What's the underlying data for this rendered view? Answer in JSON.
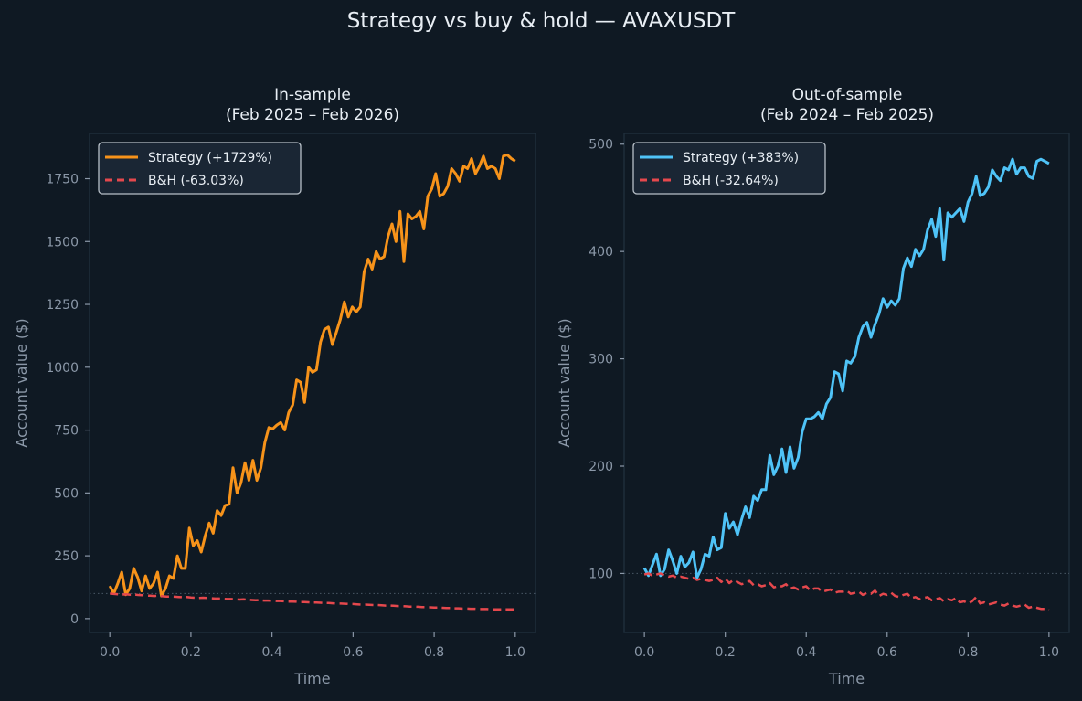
{
  "title": "Strategy vs buy & hold — AVAXUSDT",
  "colors": {
    "background": "#0f1923",
    "strategy_in": "#f7931a",
    "strategy_out": "#4fc3f7",
    "bh": "#e5484d",
    "text": "#e8eef4",
    "muted": "#8b98a8"
  },
  "chart_data": [
    {
      "type": "line",
      "title_line1": "In-sample",
      "title_line2": "(Feb 2025 – Feb 2026)",
      "xlabel": "Time",
      "ylabel": "Account value ($)",
      "xlim": [
        -0.05,
        1.05
      ],
      "ylim": [
        -55,
        1930
      ],
      "xticks": [
        "0.0",
        "0.2",
        "0.4",
        "0.6",
        "0.8",
        "1.0"
      ],
      "yticks": [
        "0",
        "250",
        "500",
        "750",
        "1000",
        "1250",
        "1500",
        "1750"
      ],
      "reference_line": 100,
      "legend_position": "upper-left",
      "series": [
        {
          "name": "Strategy (+1729%)",
          "style": "solid",
          "values": [
            130,
            100,
            140,
            185,
            95,
            120,
            200,
            165,
            110,
            170,
            120,
            140,
            185,
            90,
            120,
            170,
            160,
            250,
            200,
            200,
            360,
            290,
            310,
            265,
            330,
            380,
            340,
            430,
            410,
            450,
            455,
            600,
            500,
            540,
            620,
            550,
            630,
            550,
            600,
            700,
            760,
            755,
            770,
            780,
            750,
            820,
            850,
            950,
            940,
            860,
            1000,
            980,
            990,
            1100,
            1150,
            1160,
            1090,
            1140,
            1190,
            1260,
            1200,
            1240,
            1220,
            1240,
            1380,
            1430,
            1390,
            1460,
            1430,
            1440,
            1520,
            1570,
            1500,
            1620,
            1420,
            1610,
            1590,
            1600,
            1620,
            1550,
            1680,
            1710,
            1770,
            1680,
            1690,
            1720,
            1790,
            1770,
            1740,
            1800,
            1790,
            1830,
            1770,
            1800,
            1840,
            1790,
            1800,
            1790,
            1750,
            1840,
            1845,
            1830,
            1820
          ]
        },
        {
          "name": "B&H (-63.03%)",
          "style": "dashed",
          "values": [
            100,
            98,
            97,
            96,
            97,
            95,
            96,
            94,
            93,
            92,
            91,
            90,
            92,
            89,
            88,
            88,
            87,
            86,
            85,
            86,
            84,
            83,
            82,
            83,
            82,
            81,
            80,
            80,
            79,
            78,
            78,
            77,
            76,
            77,
            75,
            74,
            73,
            74,
            72,
            72,
            71,
            70,
            70,
            69,
            68,
            68,
            67,
            66,
            66,
            65,
            64,
            64,
            63,
            62,
            62,
            61,
            60,
            60,
            59,
            58,
            58,
            57,
            56,
            56,
            55,
            54,
            54,
            53,
            52,
            52,
            51,
            50,
            50,
            49,
            48,
            48,
            47,
            46,
            46,
            45,
            44,
            44,
            43,
            42,
            42,
            41,
            41,
            40,
            40,
            39,
            39,
            38,
            38,
            38,
            37,
            37,
            37,
            37,
            37,
            37,
            37
          ]
        }
      ]
    },
    {
      "type": "line",
      "title_line1": "Out-of-sample",
      "title_line2": "(Feb 2024 – Feb 2025)",
      "xlabel": "Time",
      "ylabel": "Account value ($)",
      "xlim": [
        -0.05,
        1.05
      ],
      "ylim": [
        45,
        510
      ],
      "xticks": [
        "0.0",
        "0.2",
        "0.4",
        "0.6",
        "0.8",
        "1.0"
      ],
      "yticks": [
        "100",
        "200",
        "300",
        "400",
        "500"
      ],
      "reference_line": 100,
      "legend_position": "upper-left",
      "series": [
        {
          "name": "Strategy (+383%)",
          "style": "solid",
          "values": [
            105,
            98,
            108,
            118,
            98,
            104,
            122,
            112,
            100,
            116,
            106,
            110,
            120,
            96,
            104,
            118,
            116,
            134,
            122,
            124,
            156,
            142,
            148,
            136,
            150,
            162,
            152,
            172,
            168,
            178,
            178,
            210,
            192,
            200,
            216,
            194,
            218,
            198,
            208,
            232,
            244,
            244,
            246,
            250,
            244,
            258,
            264,
            288,
            286,
            270,
            298,
            296,
            302,
            320,
            330,
            334,
            320,
            332,
            342,
            356,
            348,
            354,
            350,
            356,
            384,
            394,
            386,
            402,
            396,
            402,
            420,
            430,
            414,
            440,
            392,
            436,
            432,
            436,
            440,
            428,
            446,
            454,
            470,
            452,
            454,
            460,
            476,
            470,
            466,
            478,
            476,
            486,
            472,
            478,
            478,
            470,
            468,
            484,
            486,
            484,
            482
          ]
        },
        {
          "name": "B&H (-32.64%)",
          "style": "dashed",
          "values": [
            99,
            100,
            98,
            99,
            100,
            98,
            97,
            98,
            96,
            97,
            96,
            95,
            96,
            94,
            95,
            94,
            93,
            94,
            96,
            92,
            95,
            91,
            94,
            92,
            90,
            91,
            93,
            89,
            90,
            88,
            89,
            91,
            87,
            88,
            88,
            90,
            86,
            87,
            85,
            87,
            88,
            84,
            86,
            86,
            83,
            84,
            85,
            82,
            83,
            83,
            84,
            81,
            82,
            83,
            80,
            82,
            81,
            84,
            79,
            81,
            80,
            82,
            79,
            78,
            80,
            81,
            77,
            78,
            76,
            77,
            78,
            75,
            76,
            77,
            74,
            76,
            75,
            77,
            73,
            74,
            72,
            74,
            78,
            72,
            73,
            71,
            72,
            73,
            71,
            70,
            72,
            70,
            69,
            70,
            71,
            68,
            69,
            68,
            67,
            67,
            66
          ]
        }
      ]
    }
  ]
}
